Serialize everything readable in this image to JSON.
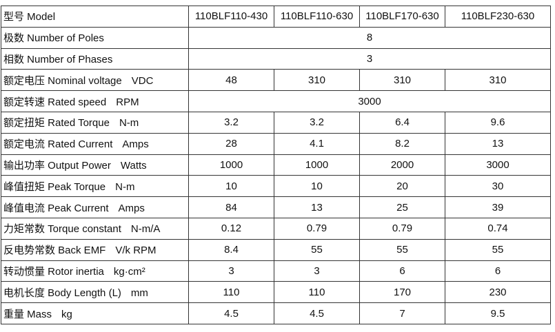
{
  "table": {
    "header": {
      "label": "型号 Model",
      "columns": [
        "110BLF110-430",
        "110BLF110-630",
        "110BLF170-630",
        "110BLF230-630"
      ]
    },
    "rows": [
      {
        "label": "极数 Number of Poles",
        "values": [
          "8"
        ]
      },
      {
        "label": "相数 Number of Phases",
        "values": [
          "3"
        ]
      },
      {
        "label": "额定电压 Nominal voltage",
        "unit": "VDC",
        "values": [
          "48",
          "310",
          "310",
          "310"
        ]
      },
      {
        "label": "额定转速 Rated speed",
        "unit": "RPM",
        "values": [
          "3000"
        ]
      },
      {
        "label": "额定扭矩 Rated Torque",
        "unit": "N-m",
        "values": [
          "3.2",
          "3.2",
          "6.4",
          "9.6"
        ]
      },
      {
        "label": "额定电流 Rated Current",
        "unit": "Amps",
        "values": [
          "28",
          "4.1",
          "8.2",
          "13"
        ]
      },
      {
        "label": "输出功率 Output Power",
        "unit": "Watts",
        "values": [
          "1000",
          "1000",
          "2000",
          "3000"
        ]
      },
      {
        "label": "峰值扭矩 Peak Torque",
        "unit": "N-m",
        "values": [
          "10",
          "10",
          "20",
          "30"
        ]
      },
      {
        "label": "峰值电流 Peak Current",
        "unit": "Amps",
        "values": [
          "84",
          "13",
          "25",
          "39"
        ]
      },
      {
        "label": "力矩常数 Torque constant",
        "unit": "N-m/A",
        "values": [
          "0.12",
          "0.79",
          "0.79",
          "0.74"
        ]
      },
      {
        "label": "反电势常数 Back EMF",
        "unit": "V/k RPM",
        "values": [
          "8.4",
          "55",
          "55",
          "55"
        ]
      },
      {
        "label": "转动惯量 Rotor inertia",
        "unit": "kg·cm²",
        "values": [
          "3",
          "3",
          "6",
          "6"
        ]
      },
      {
        "label": "电机长度 Body Length (L)",
        "unit": "mm",
        "values": [
          "110",
          "110",
          "170",
          "230"
        ]
      },
      {
        "label": "重量 Mass",
        "unit": "kg",
        "values": [
          "4.5",
          "4.5",
          "7",
          "9.5"
        ]
      }
    ]
  }
}
